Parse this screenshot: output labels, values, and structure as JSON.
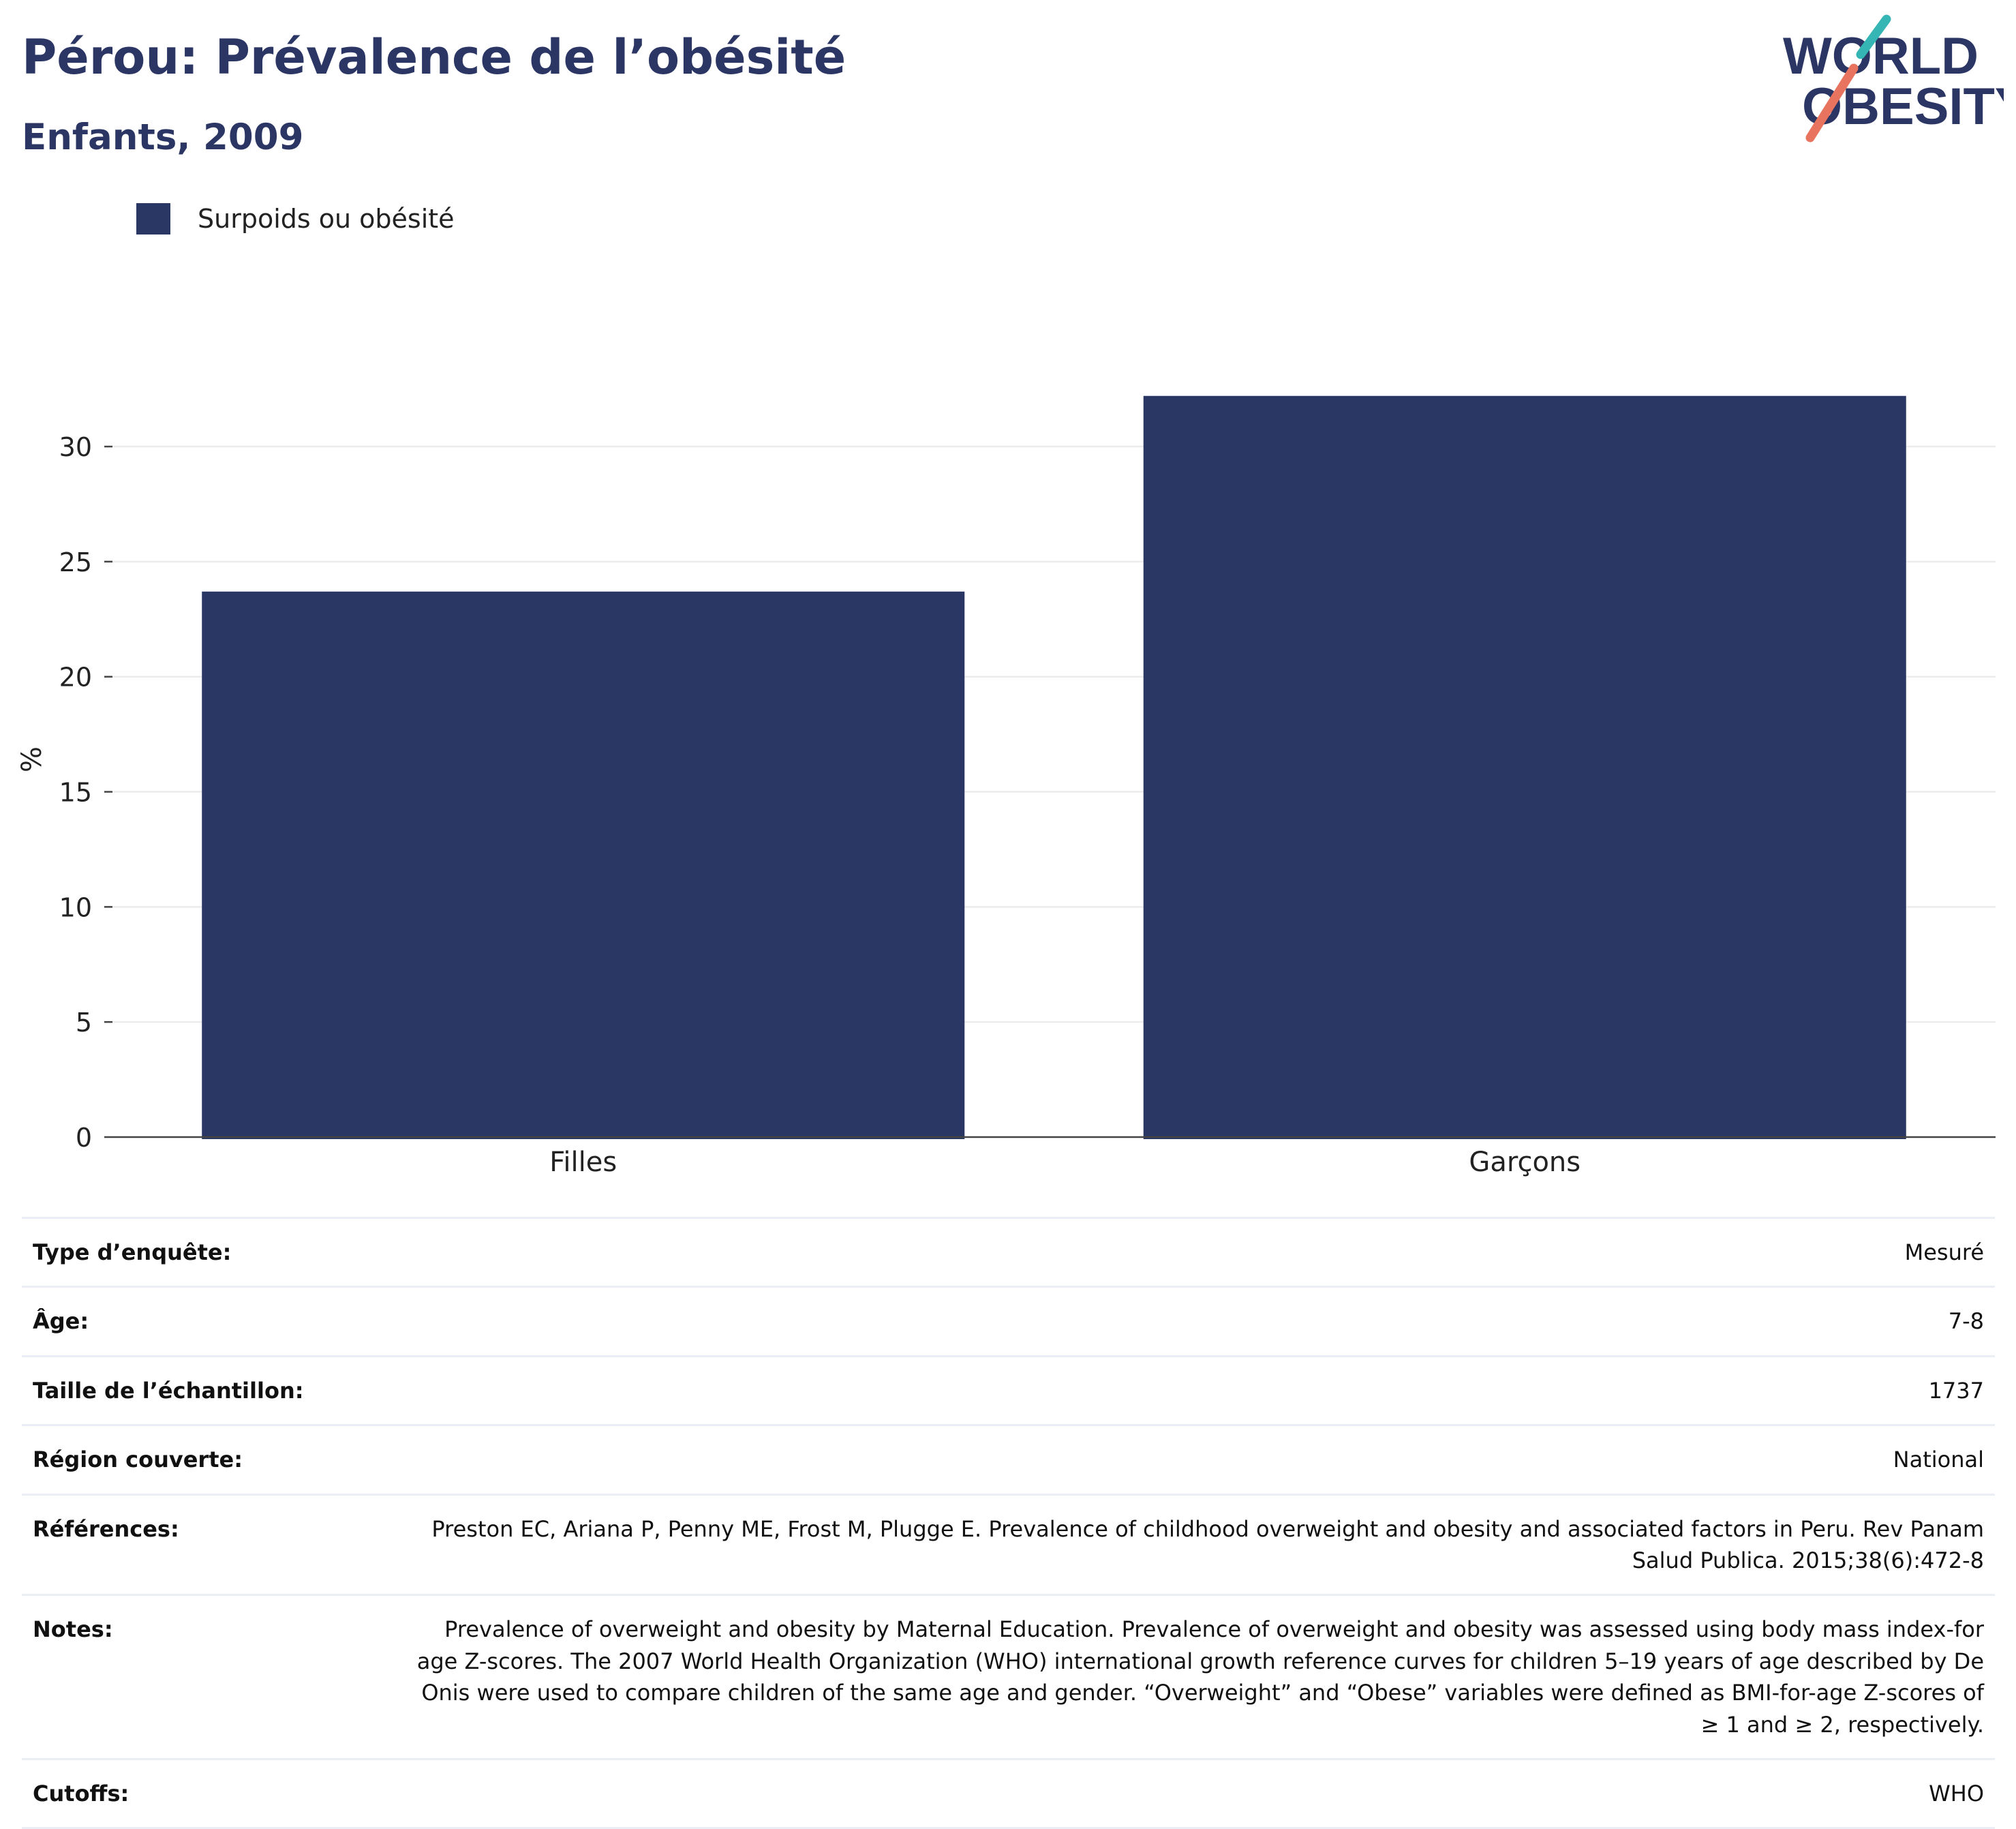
{
  "header": {
    "title": "Pérou: Prévalence de l’obésité",
    "subtitle": "Enfants, 2009"
  },
  "logo": {
    "line1": "WORLD",
    "line2": "OBESITY",
    "colors": {
      "text": "#2b3664",
      "teal": "#35b6b4",
      "coral": "#e8735e"
    }
  },
  "legend": {
    "label": "Surpoids ou obésité",
    "color": "#2a3663",
    "placement": "top-left"
  },
  "chart_data": {
    "type": "bar",
    "categories": [
      "Filles",
      "Garçons"
    ],
    "series": [
      {
        "name": "Surpoids ou obésité",
        "values": [
          23.7,
          32.2
        ],
        "color": "#2a3663"
      }
    ],
    "xlabel": "",
    "ylabel": "%",
    "ylim": [
      0,
      34
    ],
    "yticks": [
      0,
      5,
      10,
      15,
      20,
      25,
      30
    ],
    "grid": true
  },
  "meta": [
    {
      "key": "Type d’enquête:",
      "value": "Mesuré"
    },
    {
      "key": "Âge:",
      "value": "7-8"
    },
    {
      "key": "Taille de l’échantillon:",
      "value": "1737"
    },
    {
      "key": "Région couverte:",
      "value": "National"
    },
    {
      "key": "Références:",
      "value": "Preston EC, Ariana P, Penny ME, Frost M, Plugge E. Prevalence of childhood overweight and obesity and associated factors in Peru. Rev Panam Salud Publica. 2015;38(6):472-8"
    },
    {
      "key": "Notes:",
      "value": "Prevalence of overweight and obesity by Maternal Education. Prevalence of overweight and obesity was assessed using body mass index-for age Z-scores. The 2007 World Health Organization (WHO) international growth reference curves for children 5–19 years of age described by De Onis were used to compare children of the same age and gender. “Overweight” and “Obese” variables were defined as BMI-for-age Z-scores of ≥ 1 and ≥ 2, respectively."
    },
    {
      "key": "Cutoffs:",
      "value": "WHO"
    }
  ]
}
